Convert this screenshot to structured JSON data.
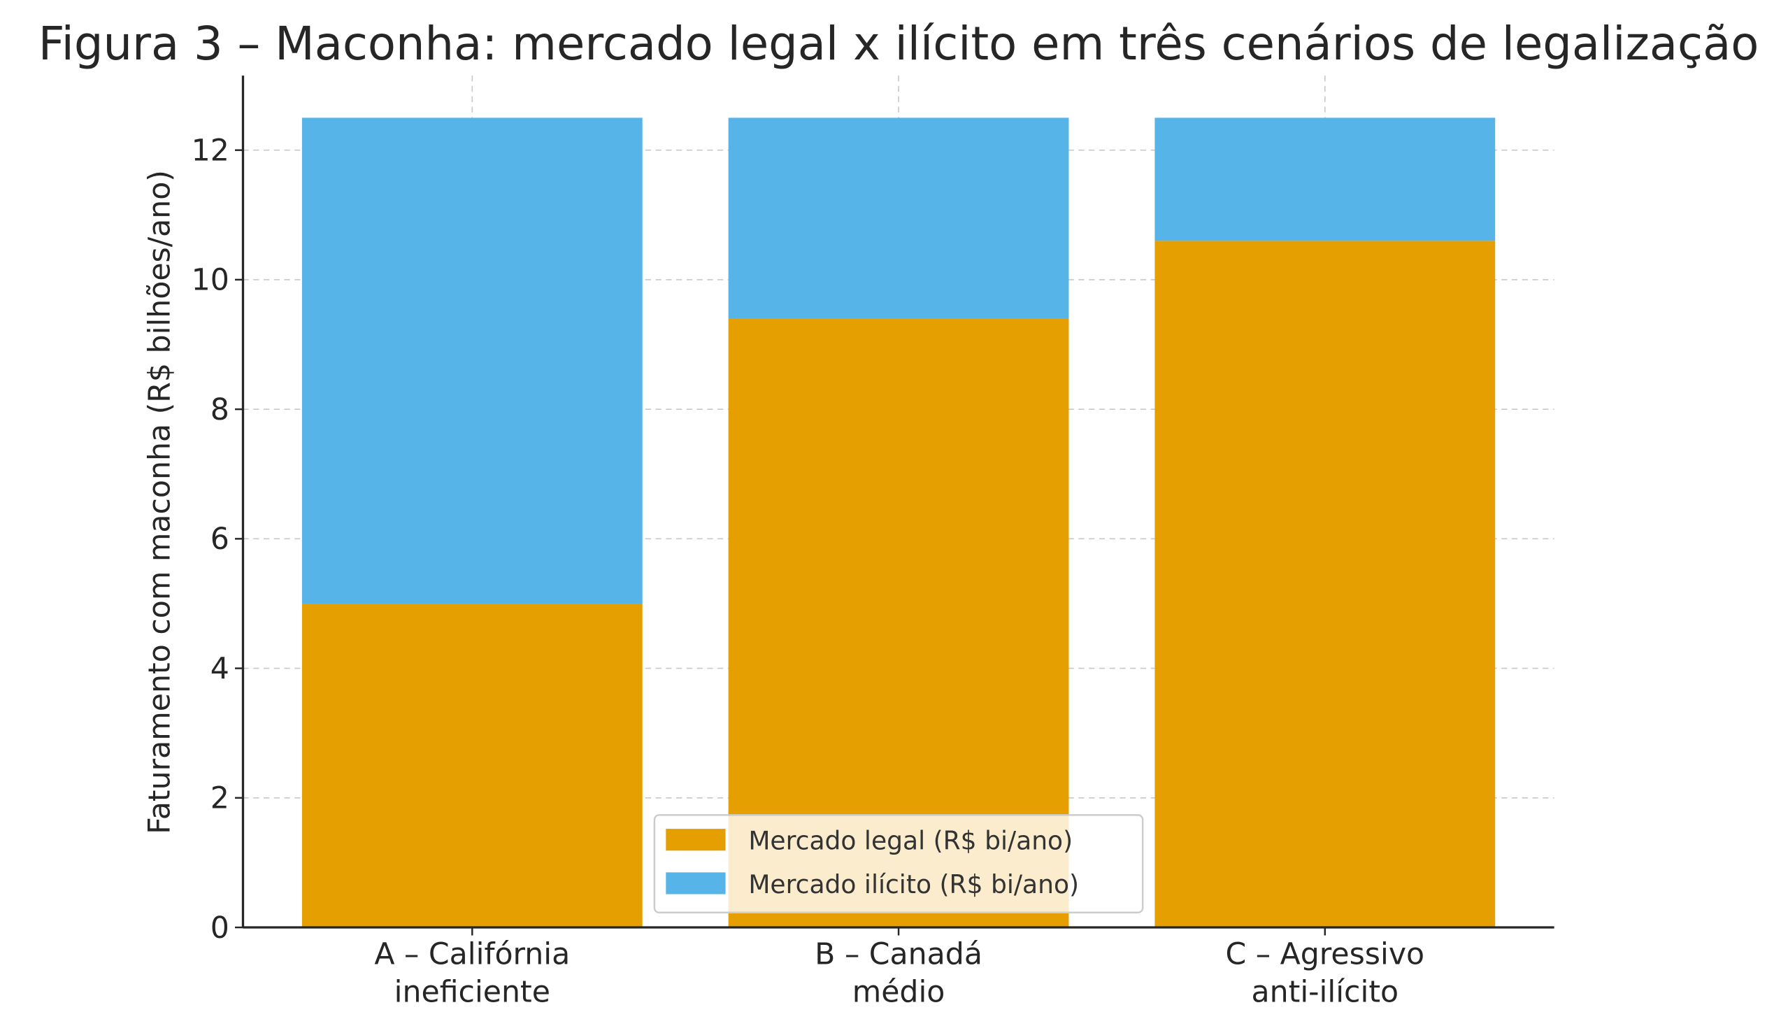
{
  "chart_data": {
    "type": "bar",
    "stacked": true,
    "title": "Figura 3 – Maconha: mercado legal x ilícito em três cenários de legalização",
    "xlabel": "",
    "ylabel": "Faturamento com maconha (R$ bilhões/ano)",
    "ylim": [
      0,
      13.15
    ],
    "yticks": [
      0,
      2,
      4,
      6,
      8,
      10,
      12
    ],
    "grid": true,
    "legend_position": "bottom-center",
    "categories": [
      [
        "A – Califórnia",
        "ineficiente"
      ],
      [
        "B – Canadá",
        "médio"
      ],
      [
        "C – Agressivo",
        "anti-ilícito"
      ]
    ],
    "series": [
      {
        "name": "Mercado legal (R$ bi/ano)",
        "color": "#E69F00",
        "values": [
          5.0,
          9.4,
          10.6
        ]
      },
      {
        "name": "Mercado ilícito (R$ bi/ano)",
        "color": "#56B4E9",
        "values": [
          7.5,
          3.1,
          1.9
        ]
      }
    ]
  }
}
